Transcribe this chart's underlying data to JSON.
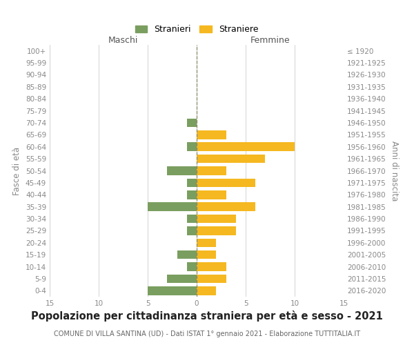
{
  "age_groups": [
    "100+",
    "95-99",
    "90-94",
    "85-89",
    "80-84",
    "75-79",
    "70-74",
    "65-69",
    "60-64",
    "55-59",
    "50-54",
    "45-49",
    "40-44",
    "35-39",
    "30-34",
    "25-29",
    "20-24",
    "15-19",
    "10-14",
    "5-9",
    "0-4"
  ],
  "birth_years": [
    "≤ 1920",
    "1921-1925",
    "1926-1930",
    "1931-1935",
    "1936-1940",
    "1941-1945",
    "1946-1950",
    "1951-1955",
    "1956-1960",
    "1961-1965",
    "1966-1970",
    "1971-1975",
    "1976-1980",
    "1981-1985",
    "1986-1990",
    "1991-1995",
    "1996-2000",
    "2001-2005",
    "2006-2010",
    "2011-2015",
    "2016-2020"
  ],
  "maschi": [
    0,
    0,
    0,
    0,
    0,
    0,
    1,
    0,
    1,
    0,
    3,
    1,
    1,
    5,
    1,
    1,
    0,
    2,
    1,
    3,
    5
  ],
  "femmine": [
    0,
    0,
    0,
    0,
    0,
    0,
    0,
    3,
    10,
    7,
    3,
    6,
    3,
    6,
    4,
    4,
    2,
    2,
    3,
    3,
    2
  ],
  "male_color": "#7a9e5f",
  "female_color": "#f5b820",
  "center_line_color": "#888866",
  "grid_color": "#cccccc",
  "bg_color": "#ffffff",
  "title": "Popolazione per cittadinanza straniera per età e sesso - 2021",
  "subtitle": "COMUNE DI VILLA SANTINA (UD) - Dati ISTAT 1° gennaio 2021 - Elaborazione TUTTITALIA.IT",
  "xlabel_left": "Maschi",
  "xlabel_right": "Femmine",
  "ylabel_left": "Fasce di età",
  "ylabel_right": "Anni di nascita",
  "legend_male": "Stranieri",
  "legend_female": "Straniere",
  "xlim": 15,
  "title_fontsize": 10.5,
  "subtitle_fontsize": 7.0,
  "axis_label_fontsize": 8.5,
  "tick_fontsize": 7.5,
  "legend_fontsize": 9
}
